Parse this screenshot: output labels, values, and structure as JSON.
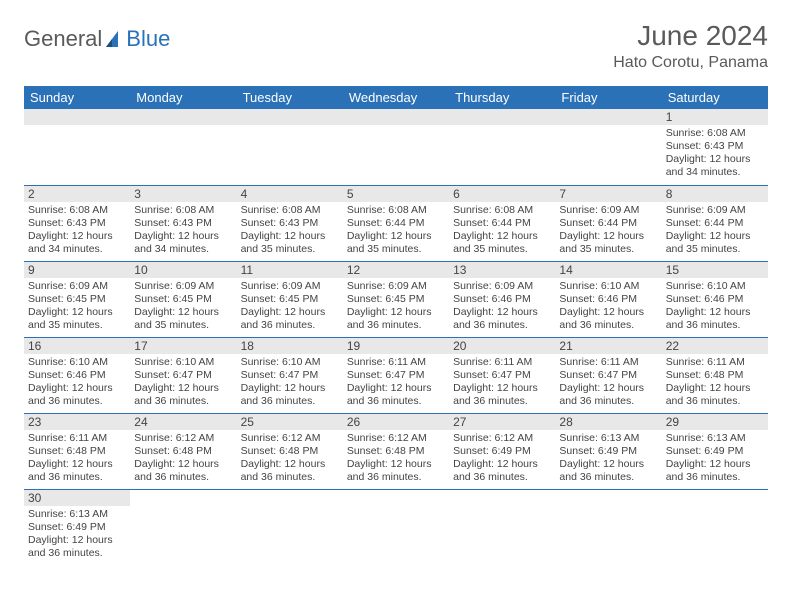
{
  "logo": {
    "textA": "General",
    "textB": "Blue"
  },
  "title": {
    "month": "June 2024",
    "location": "Hato Corotu, Panama"
  },
  "colors": {
    "accent": "#2a71b8",
    "dayBar": "#e8e8e8",
    "text": "#444",
    "bg": "#ffffff"
  },
  "weekdays": [
    "Sunday",
    "Monday",
    "Tuesday",
    "Wednesday",
    "Thursday",
    "Friday",
    "Saturday"
  ],
  "firstDayOffset": 6,
  "daysInMonth": 30,
  "days": {
    "1": {
      "sunrise": "6:08 AM",
      "sunset": "6:43 PM",
      "daylight": "12 hours and 34 minutes."
    },
    "2": {
      "sunrise": "6:08 AM",
      "sunset": "6:43 PM",
      "daylight": "12 hours and 34 minutes."
    },
    "3": {
      "sunrise": "6:08 AM",
      "sunset": "6:43 PM",
      "daylight": "12 hours and 34 minutes."
    },
    "4": {
      "sunrise": "6:08 AM",
      "sunset": "6:43 PM",
      "daylight": "12 hours and 35 minutes."
    },
    "5": {
      "sunrise": "6:08 AM",
      "sunset": "6:44 PM",
      "daylight": "12 hours and 35 minutes."
    },
    "6": {
      "sunrise": "6:08 AM",
      "sunset": "6:44 PM",
      "daylight": "12 hours and 35 minutes."
    },
    "7": {
      "sunrise": "6:09 AM",
      "sunset": "6:44 PM",
      "daylight": "12 hours and 35 minutes."
    },
    "8": {
      "sunrise": "6:09 AM",
      "sunset": "6:44 PM",
      "daylight": "12 hours and 35 minutes."
    },
    "9": {
      "sunrise": "6:09 AM",
      "sunset": "6:45 PM",
      "daylight": "12 hours and 35 minutes."
    },
    "10": {
      "sunrise": "6:09 AM",
      "sunset": "6:45 PM",
      "daylight": "12 hours and 35 minutes."
    },
    "11": {
      "sunrise": "6:09 AM",
      "sunset": "6:45 PM",
      "daylight": "12 hours and 36 minutes."
    },
    "12": {
      "sunrise": "6:09 AM",
      "sunset": "6:45 PM",
      "daylight": "12 hours and 36 minutes."
    },
    "13": {
      "sunrise": "6:09 AM",
      "sunset": "6:46 PM",
      "daylight": "12 hours and 36 minutes."
    },
    "14": {
      "sunrise": "6:10 AM",
      "sunset": "6:46 PM",
      "daylight": "12 hours and 36 minutes."
    },
    "15": {
      "sunrise": "6:10 AM",
      "sunset": "6:46 PM",
      "daylight": "12 hours and 36 minutes."
    },
    "16": {
      "sunrise": "6:10 AM",
      "sunset": "6:46 PM",
      "daylight": "12 hours and 36 minutes."
    },
    "17": {
      "sunrise": "6:10 AM",
      "sunset": "6:47 PM",
      "daylight": "12 hours and 36 minutes."
    },
    "18": {
      "sunrise": "6:10 AM",
      "sunset": "6:47 PM",
      "daylight": "12 hours and 36 minutes."
    },
    "19": {
      "sunrise": "6:11 AM",
      "sunset": "6:47 PM",
      "daylight": "12 hours and 36 minutes."
    },
    "20": {
      "sunrise": "6:11 AM",
      "sunset": "6:47 PM",
      "daylight": "12 hours and 36 minutes."
    },
    "21": {
      "sunrise": "6:11 AM",
      "sunset": "6:47 PM",
      "daylight": "12 hours and 36 minutes."
    },
    "22": {
      "sunrise": "6:11 AM",
      "sunset": "6:48 PM",
      "daylight": "12 hours and 36 minutes."
    },
    "23": {
      "sunrise": "6:11 AM",
      "sunset": "6:48 PM",
      "daylight": "12 hours and 36 minutes."
    },
    "24": {
      "sunrise": "6:12 AM",
      "sunset": "6:48 PM",
      "daylight": "12 hours and 36 minutes."
    },
    "25": {
      "sunrise": "6:12 AM",
      "sunset": "6:48 PM",
      "daylight": "12 hours and 36 minutes."
    },
    "26": {
      "sunrise": "6:12 AM",
      "sunset": "6:48 PM",
      "daylight": "12 hours and 36 minutes."
    },
    "27": {
      "sunrise": "6:12 AM",
      "sunset": "6:49 PM",
      "daylight": "12 hours and 36 minutes."
    },
    "28": {
      "sunrise": "6:13 AM",
      "sunset": "6:49 PM",
      "daylight": "12 hours and 36 minutes."
    },
    "29": {
      "sunrise": "6:13 AM",
      "sunset": "6:49 PM",
      "daylight": "12 hours and 36 minutes."
    },
    "30": {
      "sunrise": "6:13 AM",
      "sunset": "6:49 PM",
      "daylight": "12 hours and 36 minutes."
    }
  },
  "labels": {
    "sunrise": "Sunrise: ",
    "sunset": "Sunset: ",
    "daylight": "Daylight: "
  }
}
